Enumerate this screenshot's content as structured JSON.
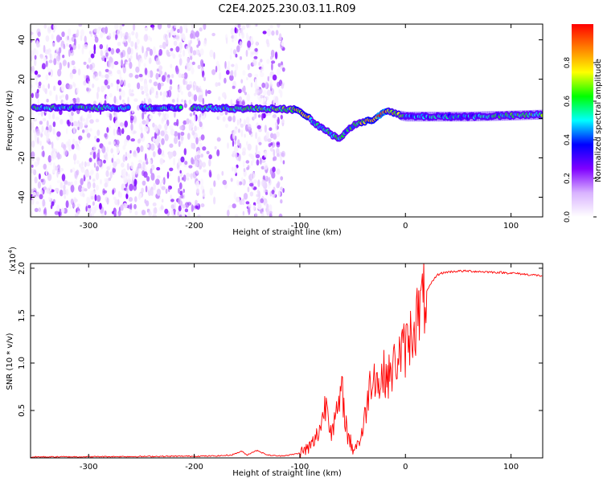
{
  "title": "C2E4.2025.230.03.11.R09",
  "chart_data": [
    {
      "type": "heatmap",
      "title": "C2E4.2025.230.03.11.R09",
      "xlabel": "Height of straight line (km)",
      "ylabel": "Frequency (Hz)",
      "xlim": [
        -355,
        130
      ],
      "ylim": [
        -50,
        48
      ],
      "xticks": [
        -300,
        -200,
        -100,
        0,
        100
      ],
      "yticks": [
        -40,
        -20,
        0,
        20,
        40
      ],
      "colorbar": {
        "label": "Normalized spectral amplitude",
        "range": [
          0,
          1
        ],
        "ticks": [
          "0.0",
          "0.2",
          "0.4",
          "0.6",
          "0.8"
        ],
        "colormap": [
          "#ffffff",
          "#d9b3ff",
          "#8000ff",
          "#0000ff",
          "#00ffff",
          "#00ff00",
          "#ffff00",
          "#ff8000",
          "#ff0000"
        ]
      },
      "ridge": {
        "x": [
          -350,
          -300,
          -250,
          -200,
          -150,
          -120,
          -105,
          -95,
          -85,
          -75,
          -68,
          -62,
          -55,
          -48,
          -40,
          -30,
          -20,
          -12,
          -5,
          0,
          20,
          60,
          100,
          130
        ],
        "freq": [
          5.5,
          5.5,
          5.5,
          5.5,
          5.0,
          5.0,
          4.5,
          2.0,
          -3.0,
          -6.0,
          -9.0,
          -10.0,
          -6.0,
          -3.0,
          -2.0,
          -0.5,
          4.0,
          3.0,
          1.5,
          1.0,
          1.0,
          1.0,
          1.5,
          2.0
        ],
        "amplitude": [
          0.5,
          0.5,
          0.45,
          0.55,
          0.55,
          0.6,
          0.7,
          0.8,
          0.5,
          0.55,
          0.55,
          0.5,
          0.5,
          0.55,
          0.7,
          0.9,
          0.9,
          0.75,
          0.65,
          0.5,
          0.45,
          0.45,
          0.55,
          0.6
        ]
      },
      "noise_extent_x": [
        -355,
        -115
      ]
    },
    {
      "type": "line",
      "xlabel": "Height of straight line (km)",
      "ylabel": "SNR (10 * v/v)",
      "yscale_label": "(x10",
      "yscale_exponent": "4",
      "yscale_suffix": ")",
      "xlim": [
        -355,
        130
      ],
      "ylim": [
        0,
        2.05
      ],
      "xticks": [
        -300,
        -200,
        -100,
        0,
        100
      ],
      "yticks": [
        "0.5",
        "1.0",
        "1.5",
        "2.0"
      ],
      "ytick_values": [
        0.5,
        1.0,
        1.5,
        2.0
      ],
      "series": [
        {
          "color": "#ff0000",
          "x": [
            -355,
            -250,
            -180,
            -165,
            -160,
            -155,
            -150,
            -145,
            -140,
            -135,
            -130,
            -120,
            -110,
            -100,
            -95,
            -90,
            -85,
            -80,
            -75,
            -70,
            -65,
            -60,
            -55,
            -50,
            -45,
            -40,
            -35,
            -30,
            -25,
            -20,
            -15,
            -10,
            -5,
            0,
            5,
            10,
            15,
            20,
            25,
            30,
            35,
            40,
            50,
            60,
            80,
            100,
            120,
            130
          ],
          "y": [
            0.01,
            0.015,
            0.02,
            0.03,
            0.05,
            0.07,
            0.03,
            0.06,
            0.08,
            0.05,
            0.03,
            0.02,
            0.03,
            0.05,
            0.08,
            0.12,
            0.2,
            0.35,
            0.6,
            0.3,
            0.45,
            0.7,
            0.25,
            0.1,
            0.15,
            0.3,
            0.7,
            0.95,
            0.75,
            0.9,
            0.85,
            1.0,
            1.1,
            1.15,
            1.3,
            1.45,
            1.6,
            1.75,
            1.85,
            1.93,
            1.95,
            1.96,
            1.97,
            1.97,
            1.96,
            1.95,
            1.93,
            1.92
          ]
        }
      ]
    }
  ]
}
